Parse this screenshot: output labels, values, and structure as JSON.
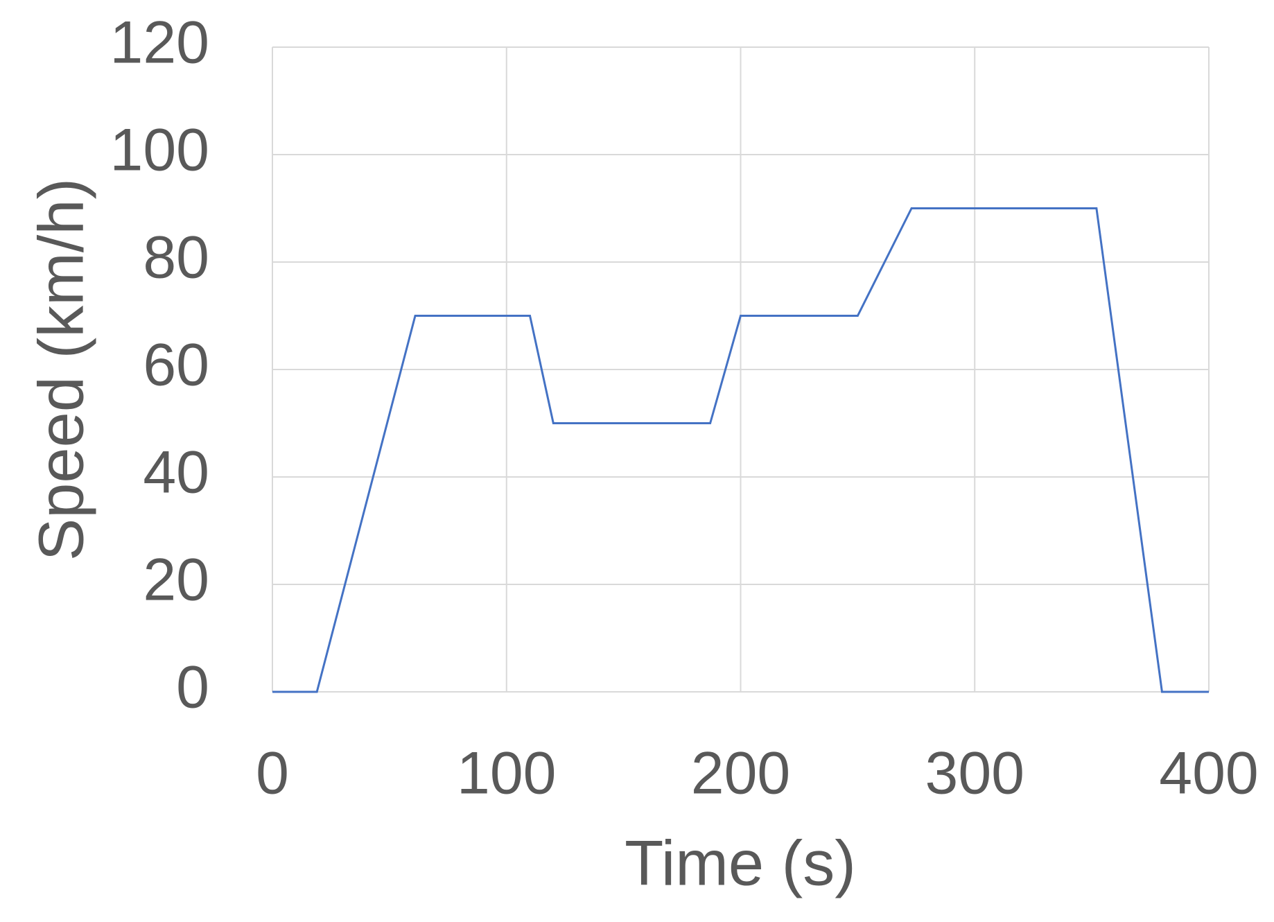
{
  "chart_data": {
    "type": "line",
    "x_label": "Time (s)",
    "y_label": "Speed (km/h)",
    "x": [
      0,
      19,
      61,
      110,
      120,
      187,
      200,
      250,
      273,
      352,
      380,
      400
    ],
    "series": [
      {
        "color": "#4472c4",
        "values": [
          0,
          0,
          70,
          70,
          50,
          50,
          70,
          70,
          90,
          90,
          0,
          0
        ]
      }
    ],
    "xlim": [
      0,
      400
    ],
    "xticks": [
      0,
      100,
      200,
      300,
      400
    ],
    "ylim": [
      0,
      120
    ],
    "yticks": [
      0,
      20,
      40,
      60,
      80,
      100,
      120
    ],
    "grid": true
  }
}
